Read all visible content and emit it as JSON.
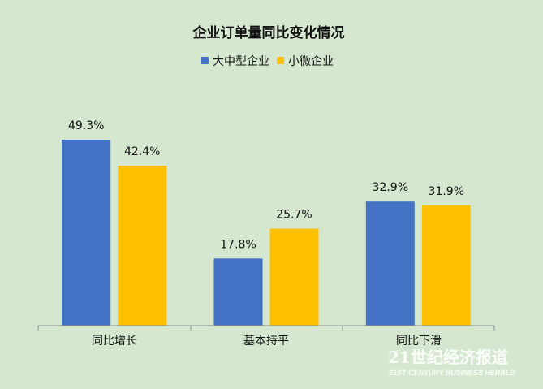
{
  "chart_data": {
    "type": "bar",
    "title": "企业订单量同比变化情况",
    "categories": [
      "同比增长",
      "基本持平",
      "同比下滑"
    ],
    "series": [
      {
        "name": "大中型企业",
        "color": "#4472c4",
        "values": [
          49.3,
          17.8,
          32.9
        ],
        "labels": [
          "49.3%",
          "17.8%",
          "32.9%"
        ]
      },
      {
        "name": "小微企业",
        "color": "#ffc000",
        "values": [
          42.4,
          25.7,
          31.9
        ],
        "labels": [
          "42.4%",
          "25.7%",
          "31.9%"
        ]
      }
    ],
    "ylim": [
      0,
      49.3
    ],
    "grid": false,
    "legend_position": "top"
  },
  "watermark": {
    "cn": "21世纪经济报道",
    "en": "21ST CENTURY BUSINESS HERALD"
  }
}
